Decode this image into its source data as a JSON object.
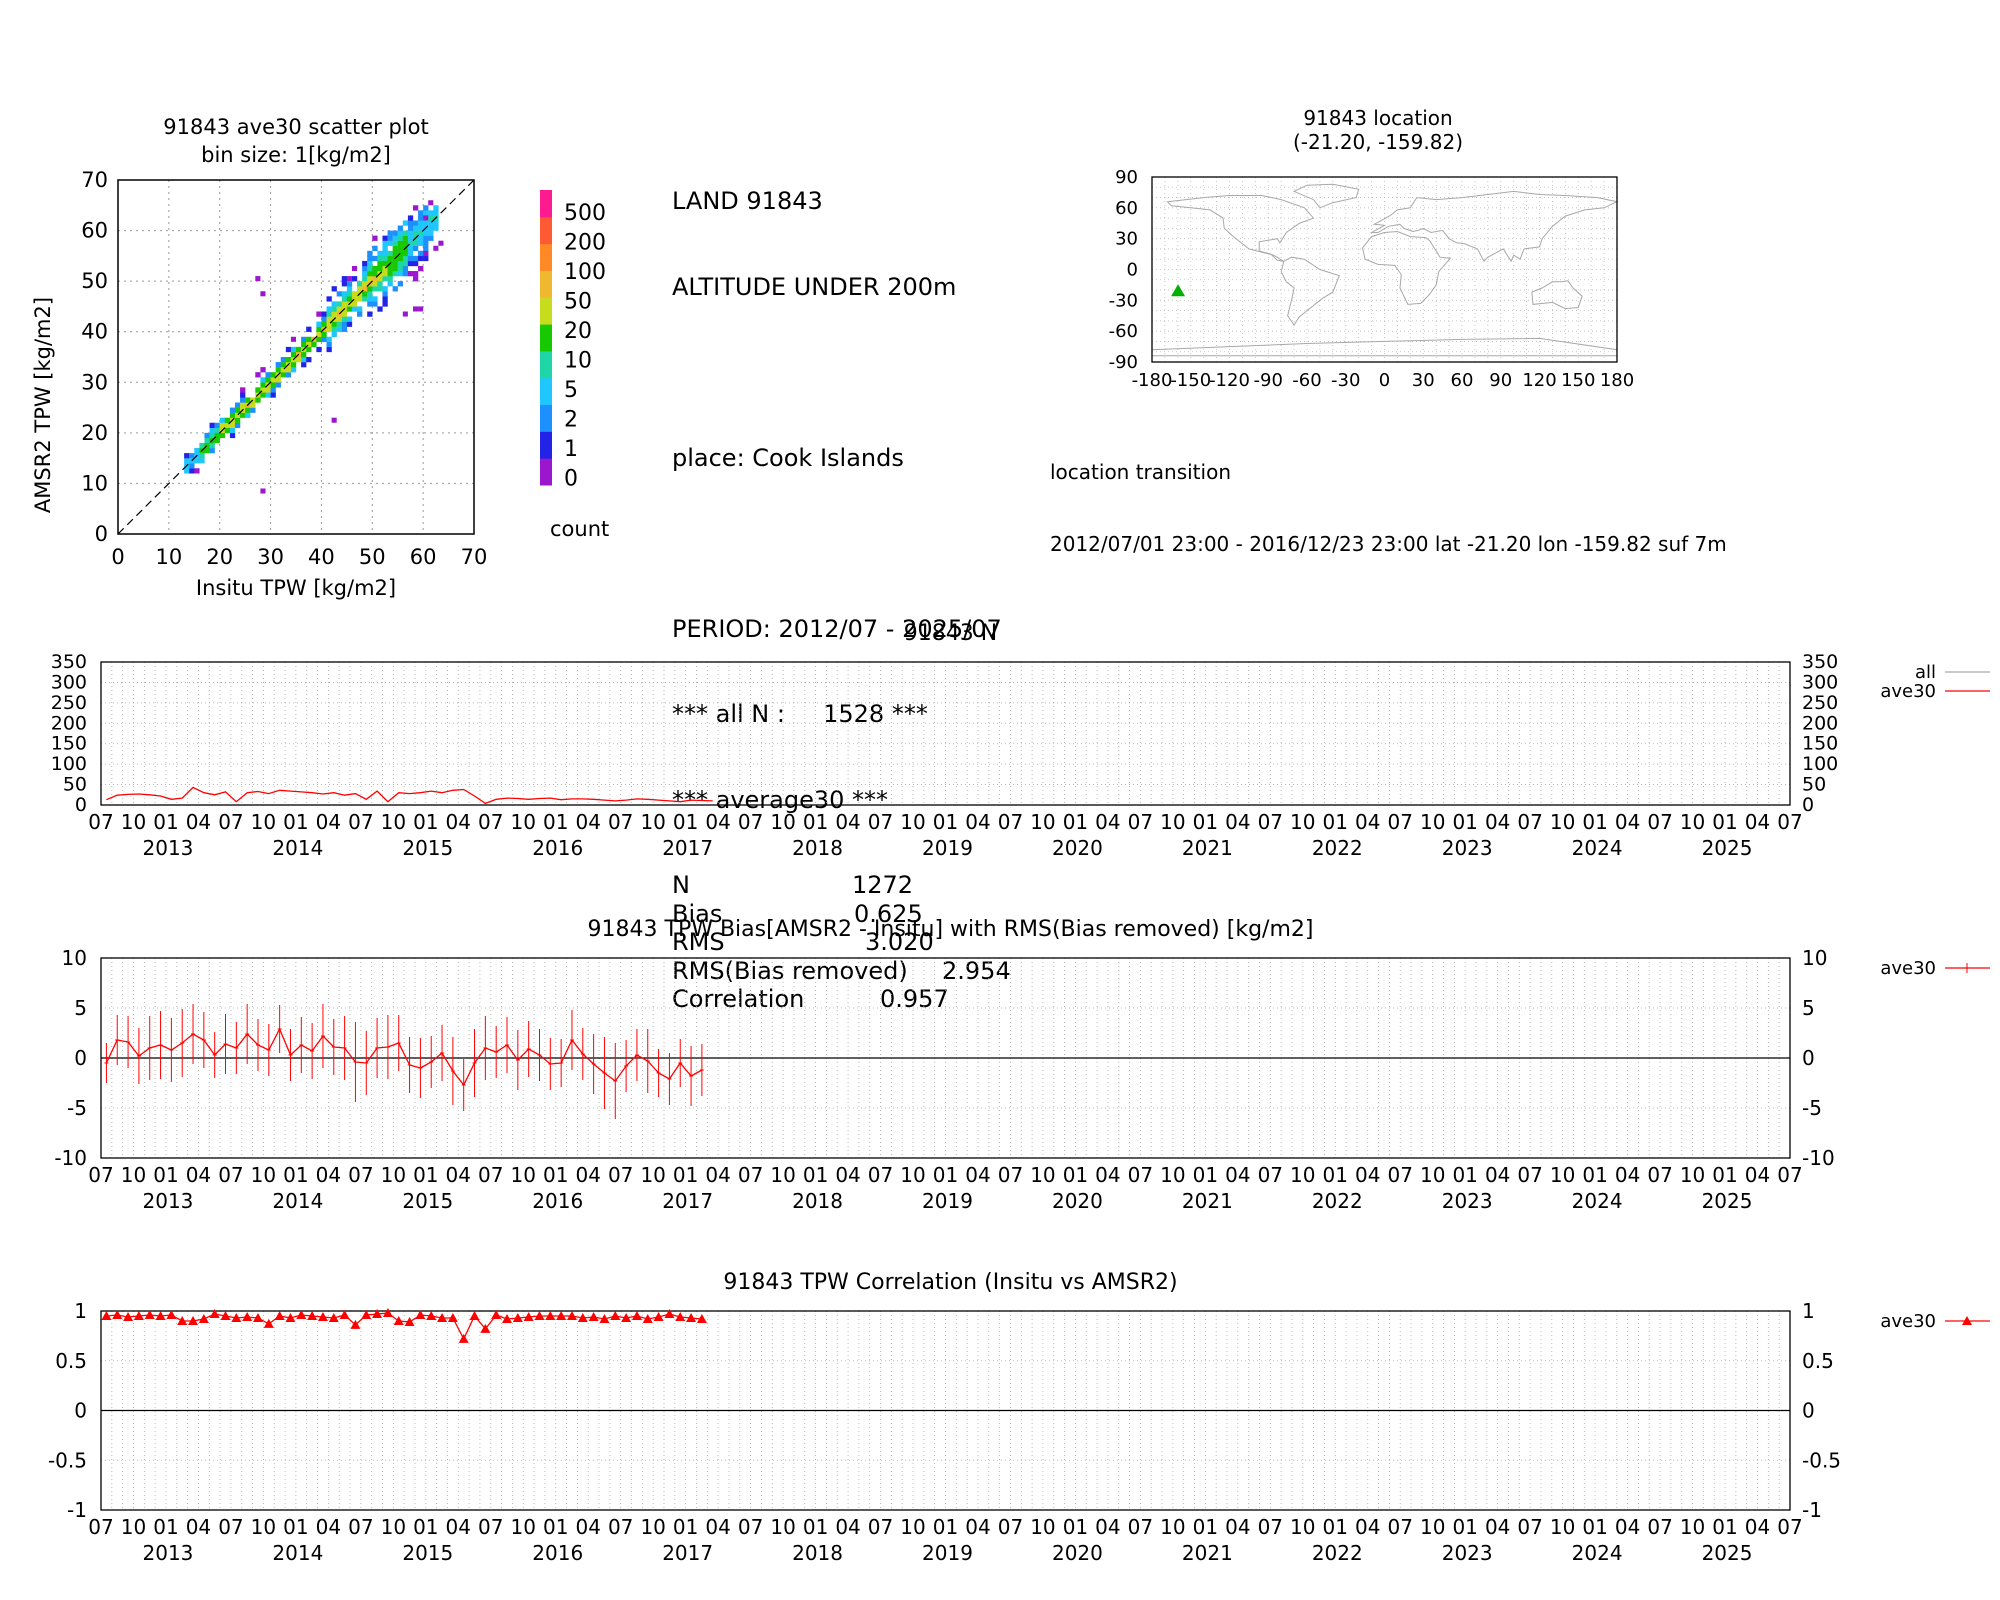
{
  "scatter": {
    "title_line1": "91843 ave30 scatter plot",
    "title_line2": "bin size: 1[kg/m2]",
    "xlabel": "Insitu TPW [kg/m2]",
    "ylabel": "AMSR2 TPW [kg/m2]",
    "colorbar_label": "count",
    "colorbar_ticks": [
      "500",
      "200",
      "100",
      "50",
      "20",
      "10",
      "5",
      "2",
      "1",
      "0"
    ],
    "colorbar_colors": [
      "#9b17ce",
      "#2323e8",
      "#1d90ff",
      "#1fc6ff",
      "#1ed6a6",
      "#18c800",
      "#c8dc1e",
      "#f0b830",
      "#ff8a25",
      "#ff5a34",
      "#ff1a90"
    ]
  },
  "info": {
    "line1": "LAND 91843",
    "line2": "ALTITUDE UNDER 200m",
    "place": "place: Cook Islands",
    "period": "PERIOD: 2012/07 - 2025/07",
    "all_n": "*** all N :     1528 ***",
    "avg_header": "*** average30 ***",
    "stats": [
      {
        "label": "N",
        "value": "1272"
      },
      {
        "label": "Bias",
        "value": "0.625"
      },
      {
        "label": "RMS",
        "value": "3.020"
      },
      {
        "label": "RMS(Bias removed)",
        "value": "2.954"
      },
      {
        "label": "Correlation",
        "value": "0.957"
      }
    ]
  },
  "map": {
    "title_line1": "91843 location",
    "title_line2": "(-21.20, -159.82)",
    "lat": -21.2,
    "lon": -159.82,
    "marker_color": "#00b000",
    "transition_title": "location transition",
    "transition_text": "2012/07/01 23:00 - 2016/12/23 23:00 lat -21.20 lon -159.82 suf 7m"
  },
  "time_axis": {
    "month_labels": [
      "07",
      "10",
      "01",
      "04"
    ],
    "years": [
      "2013",
      "2014",
      "2015",
      "2016",
      "2017",
      "2018",
      "2019",
      "2020",
      "2021",
      "2022",
      "2023",
      "2024",
      "2025"
    ]
  },
  "chart_data": [
    {
      "type": "scatter",
      "title": "91843 ave30 scatter plot bin size: 1[kg/m2]",
      "xlabel": "Insitu TPW [kg/m2]",
      "ylabel": "AMSR2 TPW [kg/m2]",
      "xlim": [
        0,
        70
      ],
      "ylim": [
        0,
        70
      ],
      "x_ticks": [
        0,
        10,
        20,
        30,
        40,
        50,
        60,
        70
      ],
      "y_ticks": [
        0,
        10,
        20,
        30,
        40,
        50,
        60,
        70
      ],
      "grid": true,
      "note": "2D histogram of ave30 pairs clustered along 1:1 line, colorbar count"
    },
    {
      "type": "line",
      "title": "91843 N",
      "ylim": [
        0,
        350
      ],
      "y_ticks": [
        0,
        50,
        100,
        150,
        200,
        250,
        300,
        350
      ],
      "legend": [
        "all",
        "ave30"
      ],
      "legend_position": "right",
      "series": [
        {
          "name": "ave30",
          "color": "#ff0000",
          "values": [
            13,
            24,
            26,
            27,
            25,
            22,
            14,
            17,
            43,
            30,
            25,
            32,
            8,
            30,
            33,
            28,
            36,
            34,
            32,
            30,
            27,
            30,
            24,
            28,
            14,
            34,
            8,
            30,
            28,
            30,
            34,
            30,
            36,
            38,
            22,
            4,
            14,
            17,
            16,
            14,
            16,
            17,
            13,
            15,
            15,
            14,
            12,
            10,
            12,
            15,
            14,
            12,
            10,
            8,
            12,
            11,
            10
          ]
        }
      ]
    },
    {
      "type": "line",
      "title": "91843 TPW Bias[AMSR2 - Insitu] with RMS(Bias removed) [kg/m2]",
      "ylim": [
        -10,
        10
      ],
      "y_ticks": [
        -10,
        -5,
        0,
        5,
        10
      ],
      "legend": [
        "ave30"
      ],
      "legend_position": "right",
      "series": [
        {
          "name": "ave30",
          "color": "#ff0000",
          "values": [
            -0.5,
            1.8,
            1.6,
            0.2,
            1.0,
            1.3,
            0.8,
            1.5,
            2.4,
            1.8,
            0.3,
            1.4,
            1.0,
            2.4,
            1.3,
            0.8,
            2.9,
            0.3,
            1.3,
            0.7,
            2.2,
            1.1,
            1.0,
            -0.4,
            -0.5,
            1.0,
            1.1,
            1.5,
            -0.7,
            -1.0,
            -0.4,
            0.5,
            -1.3,
            -2.7,
            -0.5,
            1.0,
            0.6,
            1.3,
            -0.2,
            0.9,
            0.3,
            -0.6,
            -0.5,
            1.8,
            0.4,
            -0.6,
            -1.5,
            -2.3,
            -0.8,
            0.3,
            -0.3,
            -1.5,
            -2.1,
            -0.5,
            -1.8,
            -1.2
          ],
          "errors": [
            2.0,
            2.5,
            2.6,
            2.8,
            3.2,
            3.4,
            3.2,
            3.4,
            3.0,
            2.8,
            2.3,
            3.0,
            2.6,
            3.0,
            2.6,
            2.6,
            2.4,
            2.6,
            2.8,
            2.8,
            3.2,
            2.8,
            3.2,
            4.0,
            3.2,
            3.0,
            3.2,
            2.8,
            2.8,
            3.0,
            2.6,
            2.8,
            3.4,
            2.6,
            3.4,
            3.2,
            2.6,
            2.8,
            3.0,
            2.8,
            2.6,
            2.6,
            2.4,
            3.0,
            2.6,
            3.0,
            3.6,
            3.8,
            2.6,
            2.6,
            3.2,
            2.4,
            2.6,
            2.4,
            3.0,
            2.6
          ]
        }
      ]
    },
    {
      "type": "line",
      "title": "91843 TPW Correlation (Insitu vs AMSR2)",
      "ylim": [
        -1,
        1
      ],
      "y_ticks": [
        -1,
        -0.5,
        0,
        0.5,
        1
      ],
      "legend": [
        "ave30"
      ],
      "legend_position": "right",
      "series": [
        {
          "name": "ave30",
          "color": "#ff0000",
          "values": [
            0.95,
            0.96,
            0.94,
            0.95,
            0.96,
            0.95,
            0.96,
            0.9,
            0.9,
            0.92,
            0.97,
            0.95,
            0.93,
            0.94,
            0.93,
            0.87,
            0.95,
            0.93,
            0.96,
            0.95,
            0.94,
            0.93,
            0.96,
            0.86,
            0.96,
            0.97,
            0.98,
            0.9,
            0.89,
            0.96,
            0.95,
            0.93,
            0.93,
            0.72,
            0.95,
            0.82,
            0.96,
            0.92,
            0.93,
            0.94,
            0.95,
            0.95,
            0.95,
            0.95,
            0.93,
            0.94,
            0.92,
            0.95,
            0.93,
            0.95,
            0.92,
            0.94,
            0.97,
            0.94,
            0.93,
            0.92
          ]
        }
      ]
    }
  ]
}
